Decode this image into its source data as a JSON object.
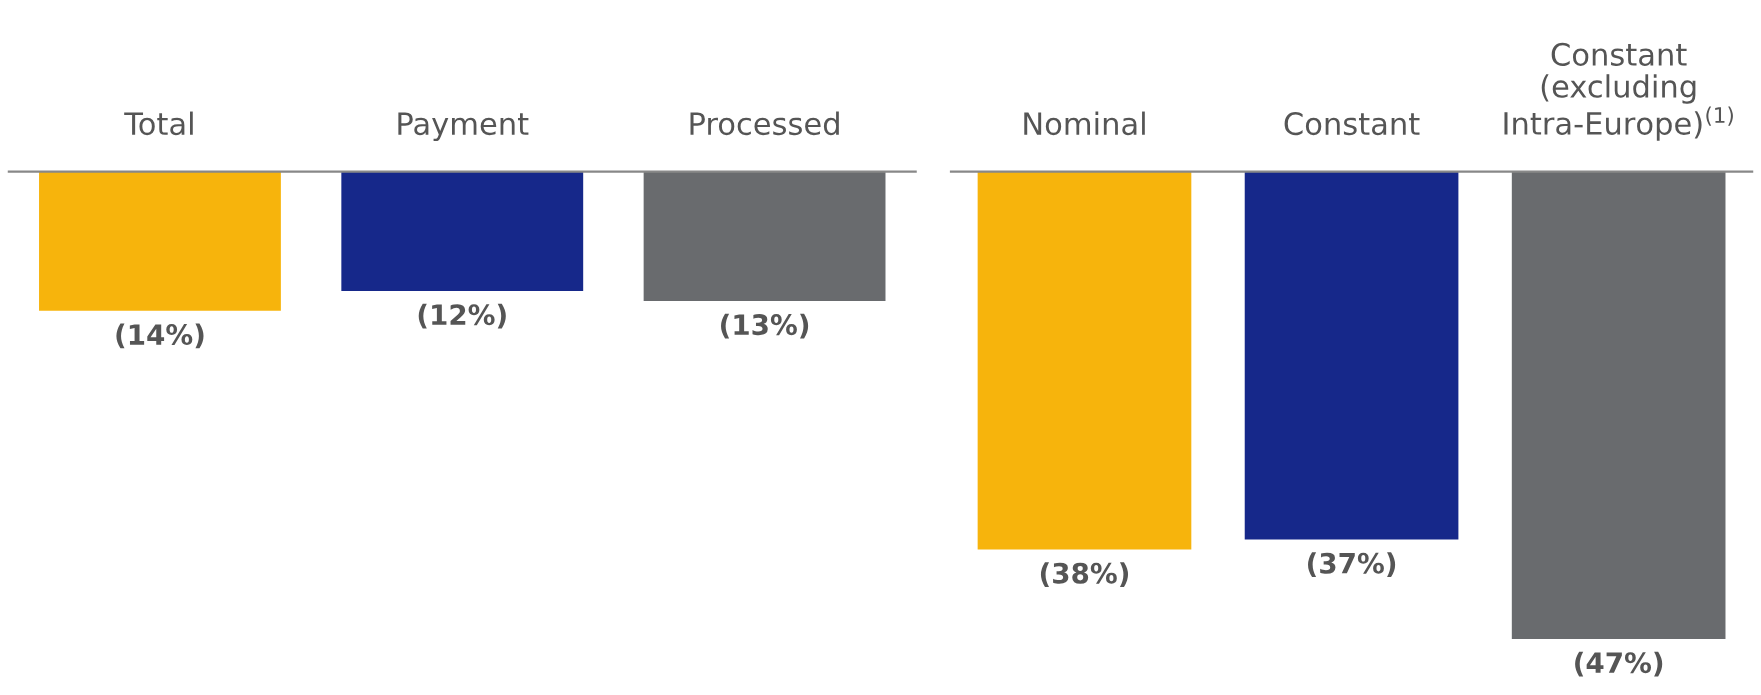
{
  "chart_data": [
    {
      "type": "bar",
      "categories": [
        "Total",
        "Payment",
        "Processed"
      ],
      "values": [
        -14,
        -12,
        -13
      ],
      "colors": [
        "#f7b40c",
        "#16288a",
        "#696b6e"
      ],
      "data_labels": true,
      "value_labels": [
        "(14%)",
        "(12%)",
        "(13%)"
      ],
      "tick_labels": "x"
    },
    {
      "type": "bar",
      "categories": [
        "Nominal",
        "Constant",
        "Constant\n(excluding\nIntra-Europe)$^{(1)}$"
      ],
      "values": [
        -38,
        -37,
        -47
      ],
      "colors": [
        "#f7b40c",
        "#16288a",
        "#696b6e"
      ],
      "data_labels": true,
      "value_labels": [
        "(38%)",
        "(37%)",
        "(47%)"
      ],
      "tick_labels": "x"
    }
  ]
}
